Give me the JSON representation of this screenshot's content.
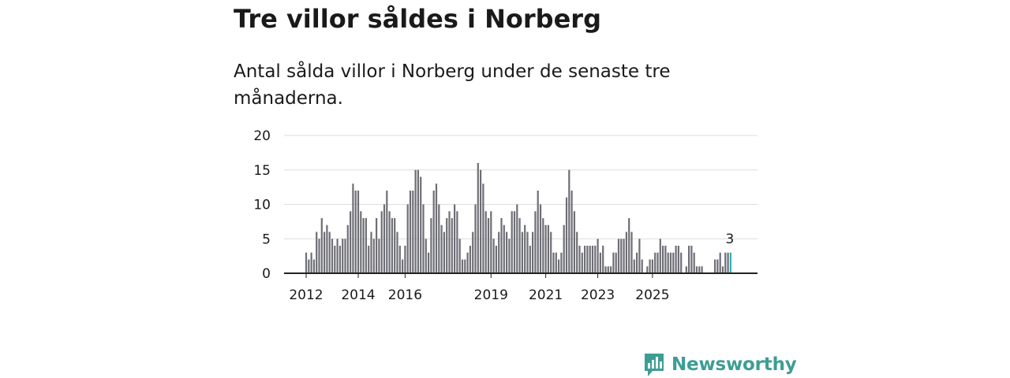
{
  "title": "Tre villor såldes i Norberg",
  "subtitle": "Antal sålda villor i Norberg under de senaste tre månaderna.",
  "brand": {
    "name": "Newsworthy",
    "color": "#3d9d94"
  },
  "colors": {
    "bar": "#6e6e76",
    "highlight": "#2bb5b0",
    "grid": "#dedede",
    "axis": "#222222"
  },
  "chart_data": {
    "type": "bar",
    "title": "Antal sålda villor i Norberg",
    "ylim": [
      0,
      20
    ],
    "yticks": [
      0,
      5,
      10,
      15,
      20
    ],
    "x_tick_labels": [
      {
        "label": "2012",
        "index": 0
      },
      {
        "label": "2014",
        "index": 20
      },
      {
        "label": "2016",
        "index": 38
      },
      {
        "label": "2019",
        "index": 71
      },
      {
        "label": "2021",
        "index": 92
      },
      {
        "label": "2023",
        "index": 112
      },
      {
        "label": "2025",
        "index": 133
      }
    ],
    "first_period": "2012-01",
    "values": [
      3,
      2,
      3,
      2,
      6,
      5,
      8,
      6,
      7,
      6,
      5,
      4,
      5,
      4,
      5,
      5,
      7,
      9,
      13,
      12,
      12,
      9,
      8,
      8,
      4,
      6,
      5,
      8,
      5,
      9,
      10,
      12,
      9,
      8,
      8,
      6,
      4,
      2,
      4,
      10,
      12,
      12,
      15,
      15,
      14,
      10,
      5,
      3,
      8,
      12,
      13,
      10,
      7,
      6,
      8,
      9,
      8,
      10,
      9,
      5,
      2,
      2,
      3,
      4,
      6,
      10,
      16,
      15,
      13,
      9,
      8,
      9,
      5,
      4,
      6,
      8,
      7,
      6,
      5,
      9,
      9,
      10,
      8,
      6,
      7,
      6,
      4,
      6,
      9,
      12,
      10,
      8,
      7,
      7,
      6,
      3,
      3,
      2,
      3,
      7,
      11,
      15,
      12,
      9,
      6,
      4,
      3,
      4,
      4,
      4,
      4,
      4,
      5,
      3,
      4,
      1,
      1,
      1,
      3,
      3,
      5,
      5,
      5,
      6,
      8,
      6,
      2,
      3,
      5,
      2,
      0,
      1,
      2,
      2,
      3,
      3,
      5,
      4,
      4,
      3,
      3,
      3,
      4,
      4,
      3,
      0,
      1,
      4,
      4,
      3,
      1,
      1,
      1,
      0,
      0,
      0,
      0,
      2,
      2,
      3,
      1,
      3,
      3,
      3
    ],
    "highlight_value_label": "3"
  }
}
